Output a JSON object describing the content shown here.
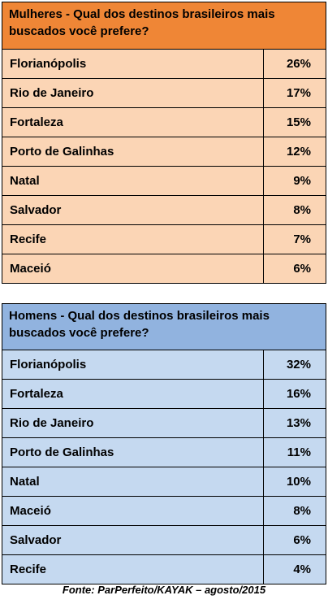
{
  "chart_data": [
    {
      "type": "table",
      "title": "Mulheres - Qual dos destinos brasileiros mais buscados você prefere?",
      "header_color": "#ef8636",
      "row_color": "#fbd5b5",
      "categories": [
        "Florianópolis",
        "Rio de Janeiro",
        "Fortaleza",
        "Porto de Galinhas",
        "Natal",
        "Salvador",
        "Recife",
        "Maceió"
      ],
      "values": [
        "26%",
        "17%",
        "15%",
        "12%",
        "9%",
        "8%",
        "7%",
        "6%"
      ]
    },
    {
      "type": "table",
      "title": "Homens - Qual dos destinos brasileiros mais buscados você prefere?",
      "header_color": "#91b3df",
      "row_color": "#c5d9f0",
      "categories": [
        "Florianópolis",
        "Fortaleza",
        "Rio de Janeiro",
        "Porto de Galinhas",
        "Natal",
        "Maceió",
        "Salvador",
        "Recife"
      ],
      "values": [
        "32%",
        "16%",
        "13%",
        "11%",
        "10%",
        "8%",
        "6%",
        "4%"
      ]
    }
  ],
  "source": "Fonte: ParPerfeito/KAYAK – agosto/2015"
}
